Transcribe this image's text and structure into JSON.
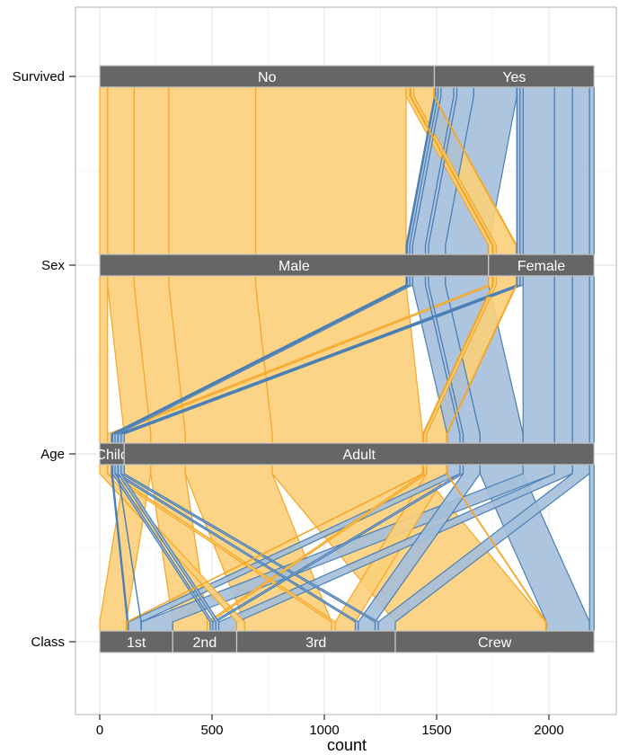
{
  "chart_data": {
    "type": "parallel-sets",
    "title": "",
    "xlabel": "count",
    "ylabel": "",
    "xlim": [
      -120,
      2290
    ],
    "x_ticks": [
      0,
      500,
      1000,
      1500,
      2000
    ],
    "grid": true,
    "legend": "none",
    "colors": {
      "No": "#f5a623",
      "Yes": "#4a7fb5",
      "panel_border": "#b3b3b3",
      "grid": "#e8e8e8",
      "bar_fill": "#666666",
      "bar_stroke": "#cccccc",
      "bar_text": "#ffffff",
      "ribbon_fill_no": "#fbcf7a",
      "ribbon_fill_yes": "#a4bfda"
    },
    "axes": [
      {
        "name": "Survived",
        "categories": [
          "No",
          "Yes"
        ]
      },
      {
        "name": "Sex",
        "categories": [
          "Male",
          "Female"
        ]
      },
      {
        "name": "Age",
        "categories": [
          "Child",
          "Adult"
        ]
      },
      {
        "name": "Class",
        "categories": [
          "1st",
          "2nd",
          "3rd",
          "Crew"
        ]
      }
    ],
    "flows": [
      {
        "Class": "1st",
        "Sex": "Male",
        "Age": "Child",
        "Survived": "No",
        "count": 0
      },
      {
        "Class": "2nd",
        "Sex": "Male",
        "Age": "Child",
        "Survived": "No",
        "count": 0
      },
      {
        "Class": "3rd",
        "Sex": "Male",
        "Age": "Child",
        "Survived": "No",
        "count": 35
      },
      {
        "Class": "Crew",
        "Sex": "Male",
        "Age": "Child",
        "Survived": "No",
        "count": 0
      },
      {
        "Class": "1st",
        "Sex": "Female",
        "Age": "Child",
        "Survived": "No",
        "count": 0
      },
      {
        "Class": "2nd",
        "Sex": "Female",
        "Age": "Child",
        "Survived": "No",
        "count": 0
      },
      {
        "Class": "3rd",
        "Sex": "Female",
        "Age": "Child",
        "Survived": "No",
        "count": 17
      },
      {
        "Class": "Crew",
        "Sex": "Female",
        "Age": "Child",
        "Survived": "No",
        "count": 0
      },
      {
        "Class": "1st",
        "Sex": "Male",
        "Age": "Adult",
        "Survived": "No",
        "count": 118
      },
      {
        "Class": "2nd",
        "Sex": "Male",
        "Age": "Adult",
        "Survived": "No",
        "count": 154
      },
      {
        "Class": "3rd",
        "Sex": "Male",
        "Age": "Adult",
        "Survived": "No",
        "count": 387
      },
      {
        "Class": "Crew",
        "Sex": "Male",
        "Age": "Adult",
        "Survived": "No",
        "count": 670
      },
      {
        "Class": "1st",
        "Sex": "Female",
        "Age": "Adult",
        "Survived": "No",
        "count": 4
      },
      {
        "Class": "2nd",
        "Sex": "Female",
        "Age": "Adult",
        "Survived": "No",
        "count": 13
      },
      {
        "Class": "3rd",
        "Sex": "Female",
        "Age": "Adult",
        "Survived": "No",
        "count": 89
      },
      {
        "Class": "Crew",
        "Sex": "Female",
        "Age": "Adult",
        "Survived": "No",
        "count": 3
      },
      {
        "Class": "1st",
        "Sex": "Male",
        "Age": "Child",
        "Survived": "Yes",
        "count": 5
      },
      {
        "Class": "2nd",
        "Sex": "Male",
        "Age": "Child",
        "Survived": "Yes",
        "count": 11
      },
      {
        "Class": "3rd",
        "Sex": "Male",
        "Age": "Child",
        "Survived": "Yes",
        "count": 13
      },
      {
        "Class": "Crew",
        "Sex": "Male",
        "Age": "Child",
        "Survived": "Yes",
        "count": 0
      },
      {
        "Class": "1st",
        "Sex": "Female",
        "Age": "Child",
        "Survived": "Yes",
        "count": 1
      },
      {
        "Class": "2nd",
        "Sex": "Female",
        "Age": "Child",
        "Survived": "Yes",
        "count": 13
      },
      {
        "Class": "3rd",
        "Sex": "Female",
        "Age": "Child",
        "Survived": "Yes",
        "count": 14
      },
      {
        "Class": "Crew",
        "Sex": "Female",
        "Age": "Child",
        "Survived": "Yes",
        "count": 0
      },
      {
        "Class": "1st",
        "Sex": "Male",
        "Age": "Adult",
        "Survived": "Yes",
        "count": 57
      },
      {
        "Class": "2nd",
        "Sex": "Male",
        "Age": "Adult",
        "Survived": "Yes",
        "count": 14
      },
      {
        "Class": "3rd",
        "Sex": "Male",
        "Age": "Adult",
        "Survived": "Yes",
        "count": 75
      },
      {
        "Class": "Crew",
        "Sex": "Male",
        "Age": "Adult",
        "Survived": "Yes",
        "count": 192
      },
      {
        "Class": "1st",
        "Sex": "Female",
        "Age": "Adult",
        "Survived": "Yes",
        "count": 140
      },
      {
        "Class": "2nd",
        "Sex": "Female",
        "Age": "Adult",
        "Survived": "Yes",
        "count": 80
      },
      {
        "Class": "3rd",
        "Sex": "Female",
        "Age": "Adult",
        "Survived": "Yes",
        "count": 76
      },
      {
        "Class": "Crew",
        "Sex": "Female",
        "Age": "Adult",
        "Survived": "Yes",
        "count": 20
      }
    ]
  }
}
